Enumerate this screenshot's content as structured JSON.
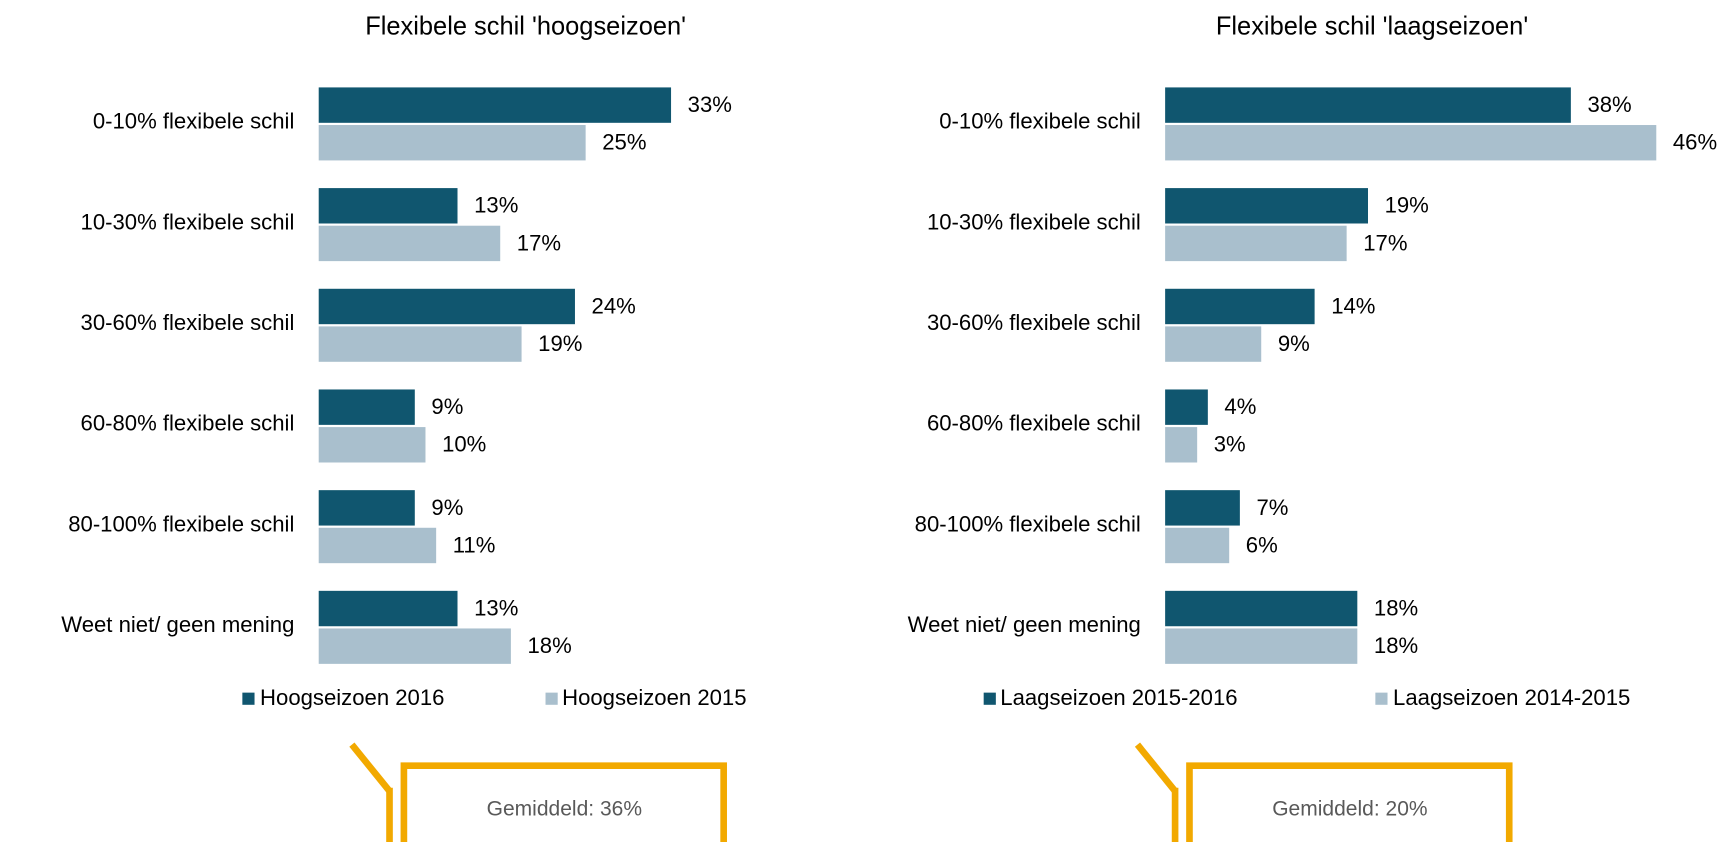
{
  "chart_data": [
    {
      "type": "bar",
      "orientation": "horizontal",
      "title": "Flexibele schil 'hoogseizoen'",
      "categories": [
        "0-10% flexibele schil",
        "10-30% flexibele schil",
        "30-60% flexibele schil",
        "60-80% flexibele schil",
        "80-100% flexibele schil",
        "Weet niet/ geen mening"
      ],
      "series": [
        {
          "name": "Hoogseizoen 2016",
          "color": "#10566f",
          "values": [
            33,
            13,
            24,
            9,
            9,
            13
          ],
          "value_labels": [
            "33%",
            "13%",
            "24%",
            "9%",
            "9%",
            "13%"
          ]
        },
        {
          "name": "Hoogseizoen 2015",
          "color": "#a9bfcd",
          "values": [
            25,
            17,
            19,
            10,
            11,
            18
          ],
          "value_labels": [
            "25%",
            "17%",
            "19%",
            "10%",
            "11%",
            "18%"
          ]
        }
      ],
      "annotation": "Gemiddeld: 36%"
    },
    {
      "type": "bar",
      "orientation": "horizontal",
      "title": "Flexibele schil 'laagseizoen'",
      "categories": [
        "0-10% flexibele schil",
        "10-30% flexibele schil",
        "30-60% flexibele schil",
        "60-80% flexibele schil",
        "80-100% flexibele schil",
        "Weet niet/ geen mening"
      ],
      "series": [
        {
          "name": "Laagseizoen 2015-2016",
          "color": "#10566f",
          "values": [
            38,
            19,
            14,
            4,
            7,
            18
          ],
          "value_labels": [
            "38%",
            "19%",
            "14%",
            "4%",
            "7%",
            "18%"
          ]
        },
        {
          "name": "Laagseizoen 2014-2015",
          "color": "#a9bfcd",
          "values": [
            46,
            17,
            9,
            3,
            6,
            18
          ],
          "value_labels": [
            "46%",
            "17%",
            "9%",
            "3%",
            "6%",
            "18%"
          ]
        }
      ],
      "annotation": "Gemiddeld: 20%"
    }
  ]
}
